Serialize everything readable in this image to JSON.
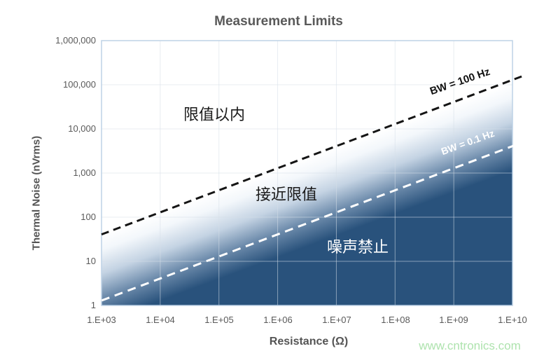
{
  "watermark": {
    "text": "www.cntronics.com",
    "color": "#aee3ae"
  },
  "chart_data": {
    "type": "line",
    "title": "Measurement Limits",
    "xlabel": "Resistance (Ω)",
    "ylabel": "Thermal Noise (nVrms)",
    "x_scale": "log",
    "y_scale": "log",
    "xlim": [
      1000,
      10000000000
    ],
    "ylim": [
      1,
      1000000
    ],
    "grid": true,
    "legend": "none",
    "xtick_labels": [
      "1.E+03",
      "1.E+04",
      "1.E+05",
      "1.E+06",
      "1.E+07",
      "1.E+08",
      "1.E+09",
      "1.E+10"
    ],
    "ytick_labels": [
      "1,000,000",
      "100,000",
      "10,000",
      "1,000",
      "100",
      "10",
      "1"
    ],
    "series": [
      {
        "name": "BW = 100 Hz",
        "color": "#151515",
        "line_style": "dashed",
        "points": [
          [
            1000,
            40.7
          ],
          [
            10000000000,
            129000
          ]
        ]
      },
      {
        "name": "BW = 0.1 Hz",
        "color": "#ffffff",
        "line_style": "dashed",
        "points": [
          [
            1000,
            1.29
          ],
          [
            10000000000,
            4070
          ]
        ]
      }
    ],
    "annotations": [
      {
        "text": "限值以内",
        "color": "#1a1a1a",
        "x": 100000,
        "y": 20000
      },
      {
        "text": "接近限值",
        "color": "#1a1a1a",
        "x": 1400000,
        "y": 320
      },
      {
        "text": "噪声禁止",
        "color": "#ffffff",
        "x": 23000000,
        "y": 20
      }
    ],
    "band_gradient": [
      "#ffffff",
      "#f3f7fb",
      "#c4d3e3",
      "#6e8cac",
      "#29527c"
    ],
    "colors": {
      "text_gray": "#595959",
      "plot_border": "#bdd2e6",
      "plot_navy": "#29527c",
      "grid_overlay": "rgba(213,222,232,0.55)"
    }
  }
}
